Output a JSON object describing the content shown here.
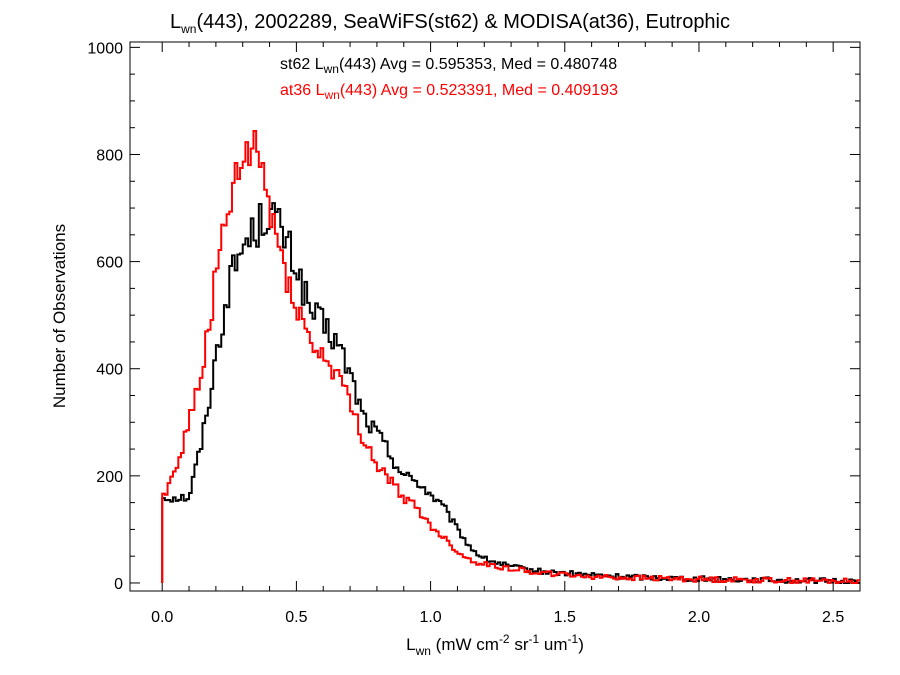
{
  "chart_data": {
    "type": "histogram",
    "title": {
      "prefix": "L",
      "subscript": "wn",
      "rest": "(443), 2002289, SeaWiFS(st62) & MODISA(at36), Eutrophic"
    },
    "xlabel": {
      "main": "L",
      "sub": "wn",
      "units": [
        " (mW cm",
        "-2",
        " sr",
        "-1",
        " um",
        "-1",
        ")"
      ]
    },
    "ylabel": "Number of Observations",
    "xlim": [
      -0.12,
      2.6
    ],
    "ylim": [
      -15,
      1010
    ],
    "xticks": [
      0.0,
      0.5,
      1.0,
      1.5,
      2.0,
      2.5
    ],
    "xtick_labels": [
      "0.0",
      "0.5",
      "1.0",
      "1.5",
      "2.0",
      "2.5"
    ],
    "yticks": [
      0,
      200,
      400,
      600,
      800,
      1000
    ],
    "ytick_labels": [
      "0",
      "200",
      "400",
      "600",
      "800",
      "1000"
    ],
    "grid": false,
    "series": [
      {
        "name": "st62",
        "color": "#000000",
        "stat_label": {
          "prefix": "st62 L",
          "sub": "wn",
          "rest": "(443) Avg = 0.595353, Med = 0.480748"
        },
        "points": [
          [
            0.0,
            0
          ],
          [
            0.1,
            160
          ],
          [
            0.15,
            270
          ],
          [
            0.2,
            420
          ],
          [
            0.25,
            560
          ],
          [
            0.3,
            630
          ],
          [
            0.35,
            660
          ],
          [
            0.4,
            700
          ],
          [
            0.45,
            650
          ],
          [
            0.5,
            590
          ],
          [
            0.55,
            510
          ],
          [
            0.6,
            480
          ],
          [
            0.65,
            450
          ],
          [
            0.7,
            390
          ],
          [
            0.75,
            310
          ],
          [
            0.8,
            280
          ],
          [
            0.85,
            240
          ],
          [
            0.9,
            200
          ],
          [
            0.95,
            190
          ],
          [
            1.0,
            165
          ],
          [
            1.05,
            140
          ],
          [
            1.1,
            100
          ],
          [
            1.15,
            65
          ],
          [
            1.2,
            45
          ],
          [
            1.3,
            30
          ],
          [
            1.4,
            22
          ],
          [
            1.5,
            18
          ],
          [
            1.7,
            12
          ],
          [
            2.0,
            8
          ],
          [
            2.3,
            5
          ],
          [
            2.6,
            3
          ]
        ]
      },
      {
        "name": "at36",
        "color": "#ff0000",
        "stat_label": {
          "prefix": "at36 L",
          "sub": "wn",
          "rest": "(443) Avg = 0.523391, Med = 0.409193"
        },
        "points": [
          [
            0.0,
            0
          ],
          [
            0.0,
            160
          ],
          [
            0.05,
            210
          ],
          [
            0.1,
            300
          ],
          [
            0.15,
            400
          ],
          [
            0.2,
            570
          ],
          [
            0.25,
            700
          ],
          [
            0.3,
            780
          ],
          [
            0.35,
            820
          ],
          [
            0.4,
            700
          ],
          [
            0.45,
            600
          ],
          [
            0.5,
            520
          ],
          [
            0.55,
            450
          ],
          [
            0.6,
            420
          ],
          [
            0.65,
            395
          ],
          [
            0.7,
            330
          ],
          [
            0.75,
            270
          ],
          [
            0.8,
            220
          ],
          [
            0.85,
            190
          ],
          [
            0.9,
            160
          ],
          [
            0.95,
            140
          ],
          [
            1.0,
            105
          ],
          [
            1.05,
            85
          ],
          [
            1.1,
            58
          ],
          [
            1.15,
            42
          ],
          [
            1.2,
            35
          ],
          [
            1.3,
            27
          ],
          [
            1.4,
            20
          ],
          [
            1.5,
            15
          ],
          [
            1.7,
            10
          ],
          [
            2.0,
            7
          ],
          [
            2.3,
            5
          ],
          [
            2.6,
            3
          ]
        ]
      }
    ]
  }
}
